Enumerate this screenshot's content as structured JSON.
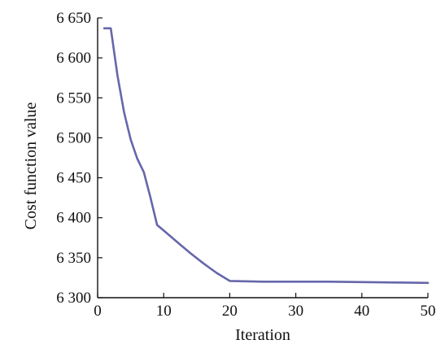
{
  "chart_data": {
    "type": "line",
    "title": "",
    "xlabel": "Iteration",
    "ylabel": "Cost function value",
    "xlim": [
      0,
      50
    ],
    "ylim": [
      6300,
      6650
    ],
    "xticks": [
      0,
      10,
      20,
      30,
      40,
      50
    ],
    "xtick_labels": [
      "0",
      "10",
      "20",
      "30",
      "40",
      "50"
    ],
    "yticks": [
      6300,
      6350,
      6400,
      6450,
      6500,
      6550,
      6600,
      6650
    ],
    "ytick_labels": [
      "6 300",
      "6 350",
      "6 400",
      "6 450",
      "6 500",
      "6 550",
      "6 600",
      "6 650"
    ],
    "grid": false,
    "series": [
      {
        "color": "#6666aa",
        "x": [
          1,
          1.5,
          2,
          3,
          4,
          5,
          6,
          7,
          8,
          9,
          10,
          12,
          14,
          16,
          18,
          20,
          25,
          30,
          35,
          40,
          45,
          50
        ],
        "y": [
          6637,
          6637,
          6637,
          6578,
          6532,
          6498,
          6474,
          6457,
          6425,
          6391,
          6384,
          6370,
          6356,
          6343,
          6331,
          6321,
          6320,
          6320,
          6320,
          6319.5,
          6319,
          6318.5
        ]
      }
    ]
  }
}
